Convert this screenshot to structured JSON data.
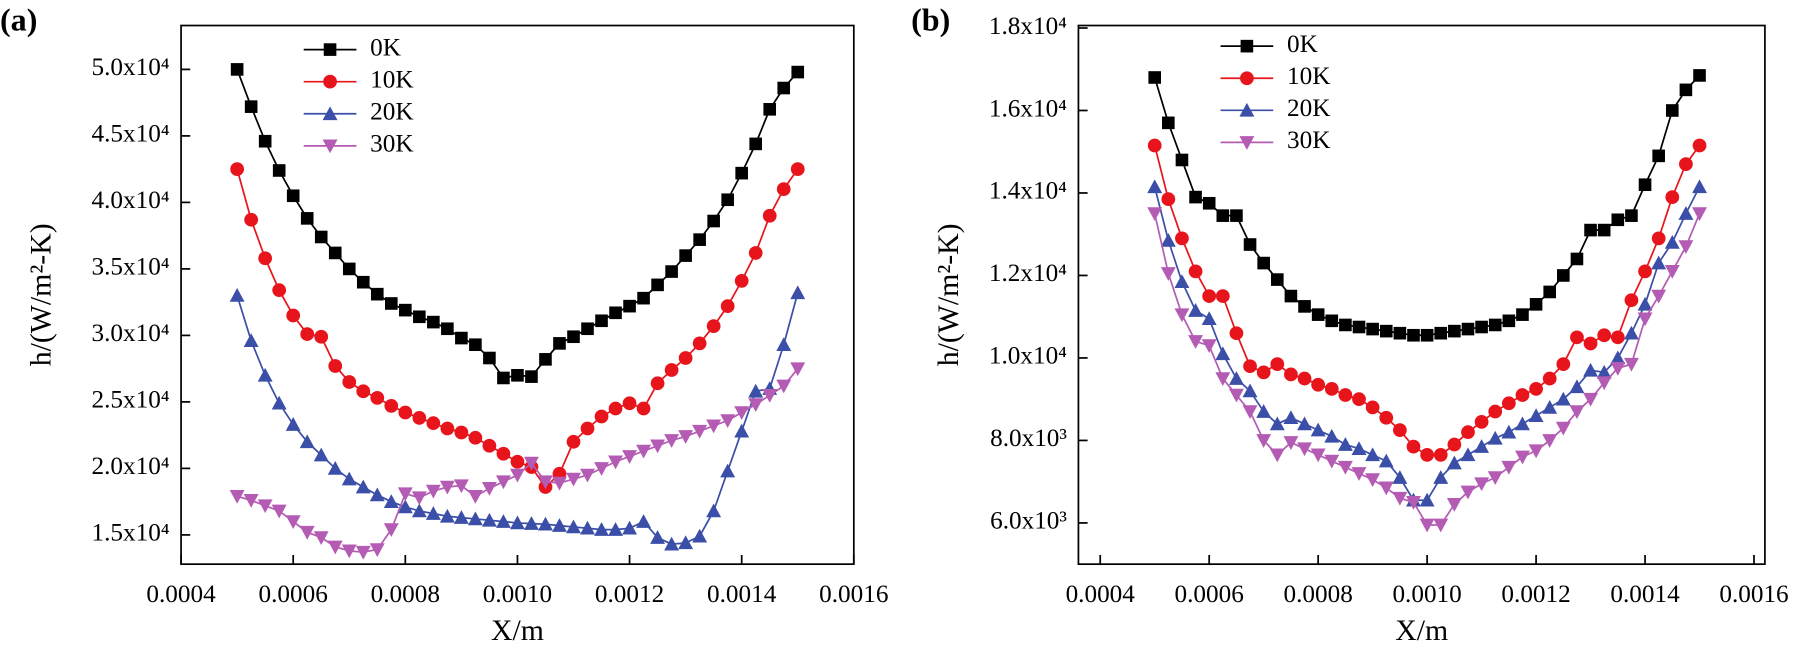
{
  "chart_data": [
    {
      "type": "line",
      "panel_label": "(a)",
      "x_label": "X/m",
      "y_label": "h/(W/m²-K)",
      "xlim": [
        0.0004,
        0.0016
      ],
      "ylim": [
        12800,
        53300
      ],
      "xticks": [
        0.0004,
        0.0006,
        0.0008,
        {
          "value": 0.001,
          "label": "0.0010"
        },
        0.0012,
        0.0014,
        0.0016
      ],
      "yticks": [
        {
          "value": 15000,
          "label": "1.5x10⁴"
        },
        {
          "value": 20000,
          "label": "2.0x10⁴"
        },
        {
          "value": 25000,
          "label": "2.5x10⁴"
        },
        {
          "value": 30000,
          "label": "3.0x10⁴"
        },
        {
          "value": 35000,
          "label": "3.5x10⁴"
        },
        {
          "value": 40000,
          "label": "4.0x10⁴"
        },
        {
          "value": 45000,
          "label": "4.5x10⁴"
        },
        {
          "value": 50000,
          "label": "5.0x10⁴"
        }
      ],
      "x": [
        0.0005,
        0.000525,
        0.00055,
        0.000575,
        0.0006,
        0.000625,
        0.00065,
        0.000675,
        0.0007,
        0.000725,
        0.00075,
        0.000775,
        0.0008,
        0.000825,
        0.00085,
        0.000875,
        0.0009,
        0.000925,
        0.00095,
        0.000975,
        0.001,
        0.001025,
        0.00105,
        0.001075,
        0.0011,
        0.001125,
        0.00115,
        0.001175,
        0.0012,
        0.001225,
        0.00125,
        0.001275,
        0.0013,
        0.001325,
        0.00135,
        0.001375,
        0.0014,
        0.001425,
        0.00145,
        0.001475,
        0.0015
      ],
      "series": [
        {
          "name": "0K",
          "color": "#000000",
          "marker": "square",
          "values": [
            50000,
            47200,
            44600,
            42400,
            40500,
            38800,
            37400,
            36200,
            35000,
            34000,
            33100,
            32400,
            31900,
            31400,
            31000,
            30500,
            29800,
            29300,
            28300,
            26800,
            27000,
            26900,
            28200,
            29400,
            29900,
            30500,
            31100,
            31700,
            32200,
            32800,
            33800,
            34800,
            36000,
            37200,
            38600,
            40200,
            42200,
            44400,
            47000,
            48600,
            49800
          ]
        },
        {
          "name": "10K",
          "color": "#e8141c",
          "marker": "circle",
          "values": [
            42500,
            38700,
            35800,
            33400,
            31500,
            30100,
            29900,
            27700,
            26500,
            25800,
            25300,
            24700,
            24200,
            23800,
            23400,
            23000,
            22700,
            22300,
            21700,
            21100,
            20500,
            20100,
            18600,
            19600,
            22000,
            23000,
            23900,
            24500,
            24900,
            24500,
            26400,
            27400,
            28300,
            29400,
            30700,
            32200,
            34100,
            36200,
            39000,
            41000,
            42500
          ]
        },
        {
          "name": "20K",
          "color": "#3b4fa8",
          "marker": "triangle-up",
          "values": [
            33000,
            29600,
            27000,
            24900,
            23300,
            22000,
            21000,
            20000,
            19200,
            18600,
            18000,
            17500,
            17100,
            16800,
            16600,
            16400,
            16300,
            16200,
            16100,
            16000,
            15900,
            15850,
            15800,
            15700,
            15600,
            15500,
            15400,
            15400,
            15500,
            16000,
            14800,
            14300,
            14400,
            14900,
            16800,
            19800,
            22800,
            25800,
            26000,
            29300,
            33200
          ]
        },
        {
          "name": "30K",
          "color": "#b45cb4",
          "marker": "triangle-down",
          "values": [
            17900,
            17600,
            17200,
            16800,
            16000,
            15200,
            14800,
            14100,
            13800,
            13700,
            13900,
            15400,
            18100,
            17800,
            18300,
            18600,
            18700,
            17900,
            18500,
            19000,
            19500,
            20400,
            19000,
            18900,
            19200,
            19500,
            20000,
            20500,
            20900,
            21300,
            21700,
            22100,
            22400,
            22800,
            23200,
            23600,
            24200,
            24800,
            25500,
            26200,
            27500
          ]
        }
      ]
    },
    {
      "type": "line",
      "panel_label": "(b)",
      "x_label": "X/m",
      "y_label": "h/(W/m²-K)",
      "xlim": [
        0.00036,
        0.00162
      ],
      "ylim": [
        5000,
        18060
      ],
      "xticks": [
        0.0004,
        0.0006,
        0.0008,
        {
          "value": 0.001,
          "label": "0.0010"
        },
        0.0012,
        0.0014,
        0.0016
      ],
      "yticks": [
        {
          "value": 6000,
          "label": "6.0x10³"
        },
        {
          "value": 8000,
          "label": "8.0x10³"
        },
        {
          "value": 10000,
          "label": "1.0x10⁴"
        },
        {
          "value": 12000,
          "label": "1.2x10⁴"
        },
        {
          "value": 14000,
          "label": "1.4x10⁴"
        },
        {
          "value": 16000,
          "label": "1.6x10⁴"
        },
        {
          "value": 18000,
          "label": "1.8x10⁴"
        }
      ],
      "x": [
        0.0005,
        0.000525,
        0.00055,
        0.000575,
        0.0006,
        0.000625,
        0.00065,
        0.000675,
        0.0007,
        0.000725,
        0.00075,
        0.000775,
        0.0008,
        0.000825,
        0.00085,
        0.000875,
        0.0009,
        0.000925,
        0.00095,
        0.000975,
        0.001,
        0.001025,
        0.00105,
        0.001075,
        0.0011,
        0.001125,
        0.00115,
        0.001175,
        0.0012,
        0.001225,
        0.00125,
        0.001275,
        0.0013,
        0.001325,
        0.00135,
        0.001375,
        0.0014,
        0.001425,
        0.00145,
        0.001475,
        0.0015
      ],
      "series": [
        {
          "name": "0K",
          "color": "#000000",
          "marker": "square",
          "values": [
            16800,
            15700,
            14800,
            13900,
            13750,
            13450,
            13450,
            12750,
            12300,
            11900,
            11500,
            11250,
            11050,
            10900,
            10800,
            10750,
            10700,
            10650,
            10600,
            10550,
            10550,
            10600,
            10650,
            10700,
            10750,
            10800,
            10900,
            11050,
            11300,
            11600,
            12000,
            12400,
            13100,
            13100,
            13350,
            13450,
            14200,
            14900,
            16000,
            16500,
            16850
          ]
        },
        {
          "name": "10K",
          "color": "#e8141c",
          "marker": "circle",
          "values": [
            15150,
            13850,
            12900,
            12100,
            11500,
            11500,
            10600,
            9800,
            9650,
            9850,
            9600,
            9500,
            9350,
            9250,
            9100,
            9000,
            8800,
            8550,
            8250,
            7850,
            7650,
            7650,
            7900,
            8200,
            8450,
            8700,
            8900,
            9100,
            9250,
            9500,
            9850,
            10500,
            10350,
            10550,
            10500,
            11400,
            12100,
            12900,
            13900,
            14700,
            15150
          ]
        },
        {
          "name": "20K",
          "color": "#3b4fa8",
          "marker": "triangle-up",
          "values": [
            14150,
            12850,
            11850,
            11150,
            10950,
            10100,
            9500,
            9200,
            8700,
            8400,
            8550,
            8400,
            8250,
            8100,
            7900,
            7800,
            7650,
            7500,
            7100,
            6550,
            6550,
            7100,
            7450,
            7650,
            7850,
            8050,
            8200,
            8400,
            8600,
            8800,
            9000,
            9300,
            9700,
            9650,
            10000,
            10600,
            11300,
            12300,
            12800,
            13500,
            14150
          ]
        },
        {
          "name": "30K",
          "color": "#b45cb4",
          "marker": "triangle-down",
          "values": [
            13500,
            12050,
            11050,
            10400,
            10300,
            9500,
            9100,
            8700,
            8000,
            7650,
            7950,
            7800,
            7650,
            7500,
            7350,
            7200,
            7050,
            6850,
            6600,
            6500,
            5950,
            5950,
            6450,
            6750,
            6950,
            7100,
            7350,
            7600,
            7750,
            8000,
            8300,
            8700,
            9000,
            9400,
            9750,
            9850,
            10950,
            11500,
            12100,
            12700,
            13500
          ]
        }
      ]
    }
  ]
}
